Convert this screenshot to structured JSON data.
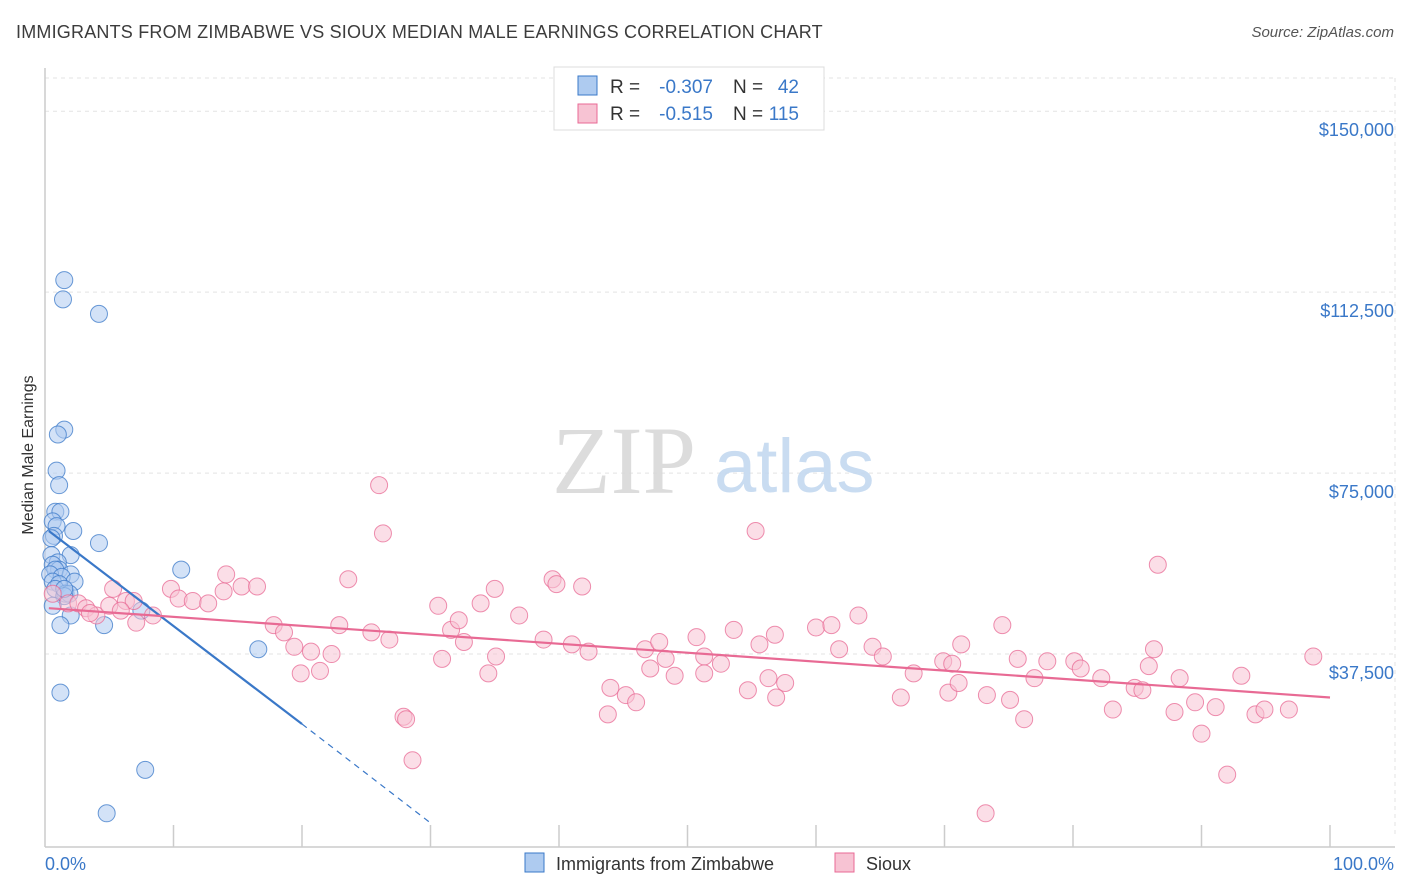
{
  "title": "IMMIGRANTS FROM ZIMBABWE VS SIOUX MEDIAN MALE EARNINGS CORRELATION CHART",
  "source": "Source: ZipAtlas.com",
  "watermark": {
    "zip": "ZIP",
    "atlas": "atlas"
  },
  "colors": {
    "blue": "#3a78c8",
    "blue_fill": "#aecbf0",
    "pink": "#e86a94",
    "pink_fill": "#f7c3d3",
    "grid": "#e3e3e3"
  },
  "legend_box": {
    "rows": [
      {
        "r_label": "R =",
        "r_value": "-0.307",
        "n_label": "N =",
        "n_value": "42"
      },
      {
        "r_label": "R =",
        "r_value": "-0.515",
        "n_label": "N =",
        "n_value": "115"
      }
    ]
  },
  "chart_data": {
    "type": "scatter",
    "title": "IMMIGRANTS FROM ZIMBABWE VS SIOUX MEDIAN MALE EARNINGS CORRELATION CHART",
    "xlabel": "",
    "ylabel": "Median Male Earnings",
    "xlim": [
      0,
      100
    ],
    "ylim": [
      0,
      157500
    ],
    "y_ticks": [
      {
        "value": 37500,
        "label": "$37,500"
      },
      {
        "value": 75000,
        "label": "$75,000"
      },
      {
        "value": 112500,
        "label": "$112,500"
      },
      {
        "value": 150000,
        "label": "$150,000"
      }
    ],
    "x_tick_labels": [
      {
        "value": 0,
        "label": "0.0%"
      },
      {
        "value": 100,
        "label": "100.0%"
      }
    ],
    "x_minor_ticks": [
      10,
      20,
      30,
      40,
      50,
      60,
      70,
      80,
      90,
      100
    ],
    "series": [
      {
        "name": "Immigrants from Zimbabwe",
        "color": "#3a78c8",
        "fill": "#aecbf0",
        "trend": {
          "x0": 0.3,
          "y0": 63000,
          "x1": 20,
          "y1": 23000,
          "dash_x1": 30,
          "dash_y1": 2500
        },
        "points": [
          [
            1.5,
            115000
          ],
          [
            1.4,
            111000
          ],
          [
            4.2,
            108000
          ],
          [
            1.5,
            84000
          ],
          [
            1.0,
            83000
          ],
          [
            0.9,
            75500
          ],
          [
            1.1,
            72500
          ],
          [
            0.8,
            67000
          ],
          [
            1.2,
            67000
          ],
          [
            0.6,
            65000
          ],
          [
            0.9,
            64000
          ],
          [
            0.7,
            62000
          ],
          [
            2.2,
            63000
          ],
          [
            0.5,
            61500
          ],
          [
            4.2,
            60500
          ],
          [
            0.5,
            58000
          ],
          [
            2.0,
            58000
          ],
          [
            1.0,
            56500
          ],
          [
            0.6,
            56000
          ],
          [
            1.1,
            55000
          ],
          [
            0.8,
            55000
          ],
          [
            10.6,
            55000
          ],
          [
            0.4,
            54000
          ],
          [
            2.0,
            54000
          ],
          [
            1.3,
            53500
          ],
          [
            0.6,
            52500
          ],
          [
            2.3,
            52500
          ],
          [
            1.1,
            52000
          ],
          [
            0.8,
            51000
          ],
          [
            1.6,
            50000
          ],
          [
            1.9,
            50000
          ],
          [
            1.5,
            49500
          ],
          [
            0.6,
            47500
          ],
          [
            7.5,
            46500
          ],
          [
            2.0,
            45500
          ],
          [
            1.2,
            43500
          ],
          [
            4.6,
            43500
          ],
          [
            16.6,
            38500
          ],
          [
            1.2,
            29500
          ],
          [
            7.8,
            13500
          ],
          [
            4.8,
            4500
          ],
          [
            1.5,
            51000
          ]
        ]
      },
      {
        "name": "Sioux",
        "color": "#e86a94",
        "fill": "#f7c3d3",
        "trend": {
          "x0": 0.3,
          "y0": 47000,
          "x1": 100,
          "y1": 28500
        },
        "points": [
          [
            0.6,
            50000
          ],
          [
            1.8,
            48000
          ],
          [
            2.6,
            48000
          ],
          [
            3.2,
            47000
          ],
          [
            4.0,
            45500
          ],
          [
            3.5,
            46000
          ],
          [
            5.3,
            51000
          ],
          [
            5.0,
            47500
          ],
          [
            6.3,
            48500
          ],
          [
            6.9,
            48500
          ],
          [
            5.9,
            46500
          ],
          [
            7.1,
            44000
          ],
          [
            8.4,
            45500
          ],
          [
            9.8,
            51000
          ],
          [
            10.4,
            49000
          ],
          [
            11.5,
            48500
          ],
          [
            12.7,
            48000
          ],
          [
            13.9,
            50500
          ],
          [
            14.1,
            54000
          ],
          [
            15.3,
            51500
          ],
          [
            16.5,
            51500
          ],
          [
            17.8,
            43500
          ],
          [
            18.6,
            42000
          ],
          [
            19.4,
            39000
          ],
          [
            20.7,
            38000
          ],
          [
            19.9,
            33500
          ],
          [
            21.4,
            34000
          ],
          [
            22.3,
            37500
          ],
          [
            22.9,
            43500
          ],
          [
            23.6,
            53000
          ],
          [
            26.0,
            72500
          ],
          [
            26.3,
            62500
          ],
          [
            25.4,
            42000
          ],
          [
            26.8,
            40500
          ],
          [
            27.9,
            24500
          ],
          [
            28.1,
            24000
          ],
          [
            28.6,
            15500
          ],
          [
            30.6,
            47500
          ],
          [
            31.6,
            42500
          ],
          [
            30.9,
            36500
          ],
          [
            32.2,
            44500
          ],
          [
            32.6,
            40000
          ],
          [
            33.9,
            48000
          ],
          [
            35.0,
            51000
          ],
          [
            35.1,
            37000
          ],
          [
            34.5,
            33500
          ],
          [
            36.9,
            45500
          ],
          [
            38.8,
            40500
          ],
          [
            39.5,
            53000
          ],
          [
            41.8,
            51500
          ],
          [
            39.8,
            52000
          ],
          [
            41.0,
            39500
          ],
          [
            42.3,
            38000
          ],
          [
            44.0,
            30500
          ],
          [
            43.8,
            25000
          ],
          [
            45.2,
            29000
          ],
          [
            46.0,
            27500
          ],
          [
            46.7,
            38500
          ],
          [
            47.1,
            34500
          ],
          [
            47.8,
            40000
          ],
          [
            48.3,
            36500
          ],
          [
            49.0,
            33000
          ],
          [
            50.7,
            41000
          ],
          [
            51.3,
            37000
          ],
          [
            51.3,
            33500
          ],
          [
            52.6,
            35500
          ],
          [
            53.6,
            42500
          ],
          [
            55.6,
            39500
          ],
          [
            56.3,
            32500
          ],
          [
            57.6,
            31500
          ],
          [
            54.7,
            30000
          ],
          [
            56.9,
            28500
          ],
          [
            55.3,
            63000
          ],
          [
            56.8,
            41500
          ],
          [
            60.0,
            43000
          ],
          [
            61.2,
            43500
          ],
          [
            61.8,
            38500
          ],
          [
            63.3,
            45500
          ],
          [
            64.4,
            39000
          ],
          [
            65.2,
            37000
          ],
          [
            66.6,
            28500
          ],
          [
            67.6,
            33500
          ],
          [
            69.9,
            36000
          ],
          [
            70.3,
            29500
          ],
          [
            70.6,
            35500
          ],
          [
            71.1,
            31500
          ],
          [
            71.3,
            39500
          ],
          [
            73.3,
            29000
          ],
          [
            74.5,
            43500
          ],
          [
            75.7,
            36500
          ],
          [
            75.1,
            28000
          ],
          [
            76.2,
            24000
          ],
          [
            77.0,
            32500
          ],
          [
            78.0,
            36000
          ],
          [
            80.1,
            36000
          ],
          [
            80.6,
            34500
          ],
          [
            82.2,
            32500
          ],
          [
            83.1,
            26000
          ],
          [
            84.8,
            30500
          ],
          [
            85.4,
            30000
          ],
          [
            86.3,
            38500
          ],
          [
            88.3,
            32500
          ],
          [
            87.9,
            25500
          ],
          [
            89.5,
            27500
          ],
          [
            90.0,
            21000
          ],
          [
            91.1,
            26500
          ],
          [
            92.0,
            12500
          ],
          [
            93.1,
            33000
          ],
          [
            94.2,
            25000
          ],
          [
            94.9,
            26000
          ],
          [
            96.8,
            26000
          ],
          [
            98.7,
            37000
          ],
          [
            86.6,
            56000
          ],
          [
            85.9,
            35000
          ],
          [
            73.2,
            4500
          ]
        ]
      }
    ],
    "legend": [
      "Immigrants from Zimbabwe",
      "Sioux"
    ]
  }
}
